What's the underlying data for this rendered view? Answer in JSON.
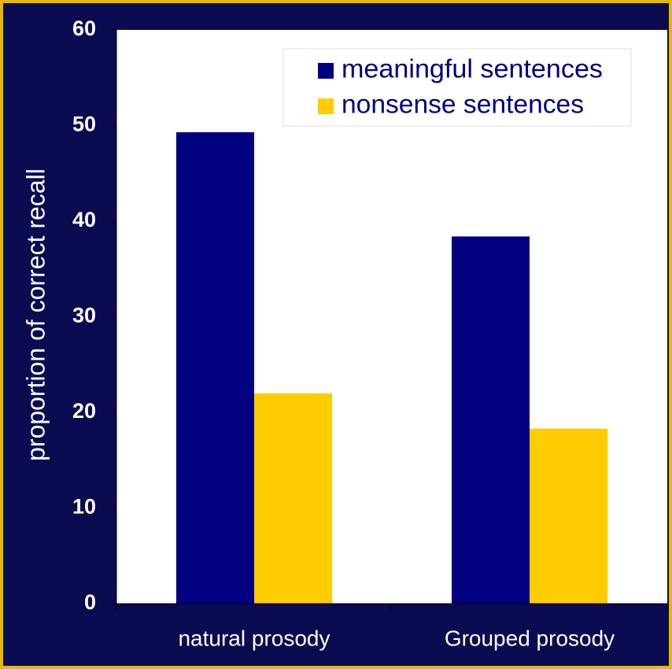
{
  "chart_data": {
    "type": "bar",
    "categories": [
      "natural prosody",
      "Grouped prosody"
    ],
    "series": [
      {
        "name": "meaningful sentences",
        "color": "#000080",
        "values": [
          49.3,
          38.4
        ]
      },
      {
        "name": "nonsense sentences",
        "color": "#ffcc00",
        "values": [
          22.0,
          18.3
        ]
      }
    ],
    "y_label": "proportion of correct recall",
    "ylim": [
      0,
      60
    ],
    "yticks": [
      0,
      10,
      20,
      30,
      40,
      50,
      60
    ],
    "legend": "top-right"
  }
}
